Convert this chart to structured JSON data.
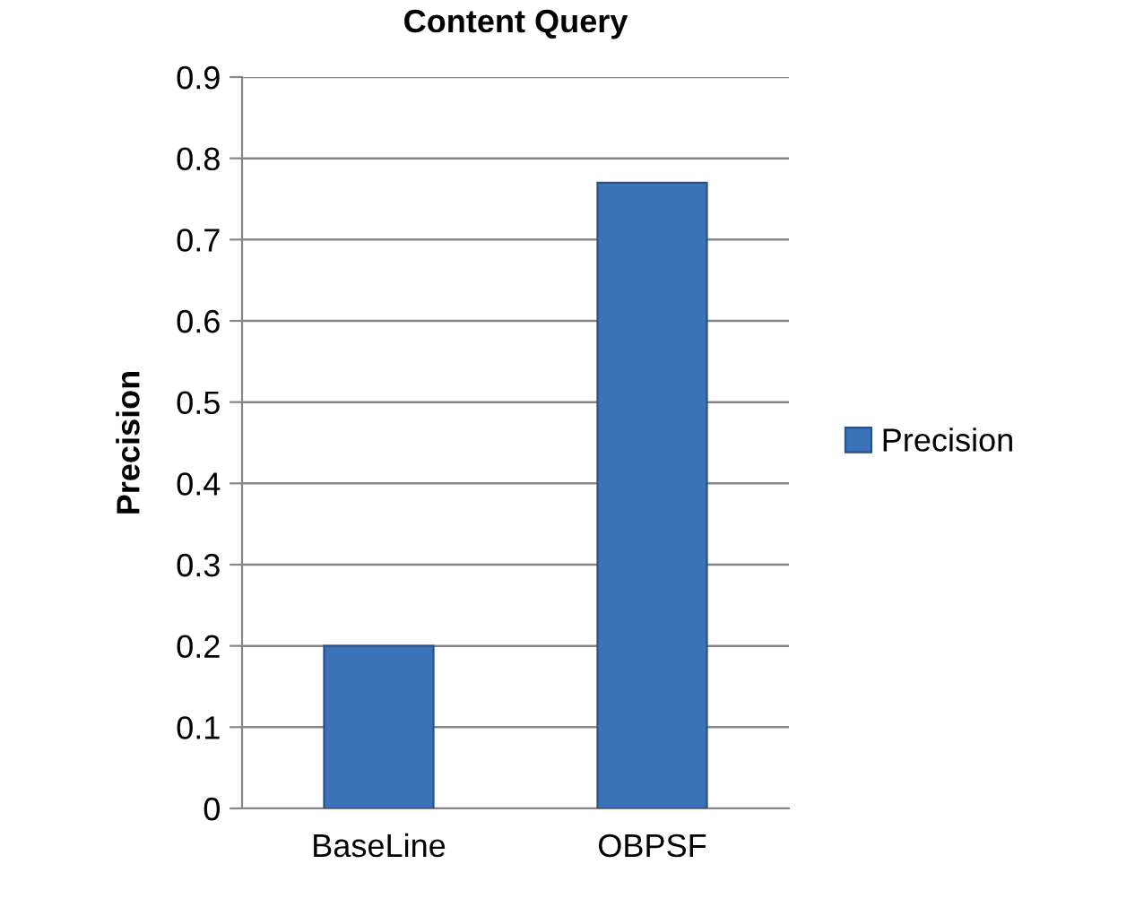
{
  "chart_data": {
    "type": "bar",
    "title": "Content Query",
    "ylabel": "Precision",
    "categories": [
      "BaseLine",
      "OBPSF"
    ],
    "series": [
      {
        "name": "Precision",
        "color": "#3c72b8",
        "values": [
          0.2,
          0.77
        ]
      }
    ],
    "ylim": [
      0,
      0.9
    ],
    "yticks": [
      0,
      0.1,
      0.2,
      0.3,
      0.4,
      0.5,
      0.6,
      0.7,
      0.8,
      0.9
    ],
    "grid": "y",
    "legend": "right"
  }
}
